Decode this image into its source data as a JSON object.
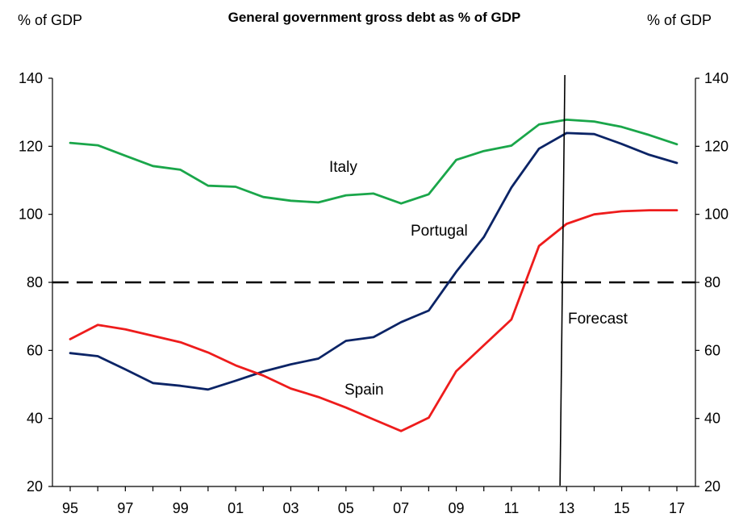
{
  "chart_data": {
    "type": "line",
    "title": "General government gross debt as % of GDP",
    "ylabel_left": "% of GDP",
    "ylabel_right": "% of GDP",
    "ylim": [
      20,
      140
    ],
    "yticks": [
      20,
      40,
      60,
      80,
      100,
      120,
      140
    ],
    "xlim": [
      1995,
      2017
    ],
    "xticks": [
      "95",
      "97",
      "99",
      "01",
      "03",
      "05",
      "07",
      "09",
      "11",
      "13",
      "15",
      "17"
    ],
    "x": [
      1995,
      1996,
      1997,
      1998,
      1999,
      2000,
      2001,
      2002,
      2003,
      2004,
      2005,
      2006,
      2007,
      2008,
      2009,
      2010,
      2011,
      2012,
      2013,
      2014,
      2015,
      2016,
      2017
    ],
    "series": [
      {
        "name": "Italy",
        "color": "#1aa64a",
        "values": [
          121.0,
          120.3,
          117.2,
          114.2,
          113.1,
          108.4,
          108.1,
          105.1,
          104.0,
          103.5,
          105.6,
          106.1,
          103.2,
          105.9,
          116.0,
          118.6,
          120.2,
          126.4,
          127.8,
          127.3,
          125.7,
          123.3,
          120.6
        ]
      },
      {
        "name": "Portugal",
        "color": "#0b2466",
        "values": [
          59.2,
          58.3,
          54.4,
          50.4,
          49.6,
          48.5,
          51.1,
          53.8,
          55.9,
          57.6,
          62.8,
          63.9,
          68.3,
          71.7,
          83.1,
          93.3,
          107.9,
          119.3,
          123.9,
          123.6,
          120.7,
          117.5,
          115.1
        ]
      },
      {
        "name": "Spain",
        "color": "#ee1c1c",
        "values": [
          63.3,
          67.5,
          66.2,
          64.3,
          62.4,
          59.4,
          55.6,
          52.6,
          48.8,
          46.3,
          43.2,
          39.7,
          36.3,
          40.2,
          53.9,
          61.5,
          69.1,
          90.7,
          97.2,
          100.0,
          100.9,
          101.2,
          101.2
        ]
      }
    ],
    "reference_line": {
      "value": 80,
      "style": "dashed",
      "color": "#000000"
    },
    "forecast_marker": {
      "x": 2012.85,
      "label": "Forecast"
    },
    "grid": false,
    "legend": "none"
  }
}
